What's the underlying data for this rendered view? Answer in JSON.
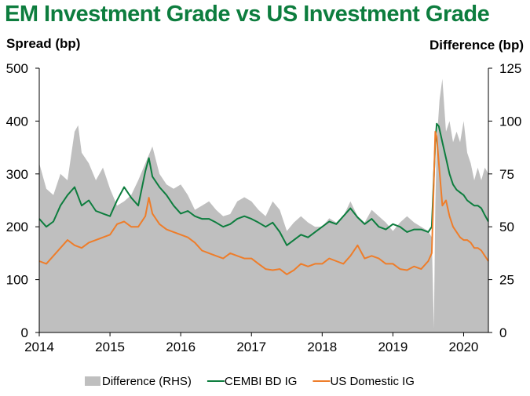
{
  "title": "EM Investment Grade vs US Investment Grade",
  "chart_data": {
    "type": "line",
    "title": "EM Investment Grade vs US Investment Grade",
    "ylabel_left": "Spread (bp)",
    "ylabel_right": "Difference (bp)",
    "xlim": [
      2014.0,
      2020.35
    ],
    "ylim_left": [
      0,
      500
    ],
    "ylim_right": [
      0,
      125
    ],
    "x_ticks": [
      "2014",
      "2015",
      "2016",
      "2017",
      "2018",
      "2019",
      "2020"
    ],
    "y_ticks_left": [
      "0",
      "100",
      "200",
      "300",
      "400",
      "500"
    ],
    "y_ticks_right": [
      "0",
      "25",
      "50",
      "75",
      "100",
      "125"
    ],
    "grid": false,
    "legend_position": "bottom",
    "series": [
      {
        "name": "Difference (RHS)",
        "type": "area",
        "axis": "right",
        "color": "#bfbfbf",
        "x": [
          2014.0,
          2014.1,
          2014.2,
          2014.3,
          2014.4,
          2014.5,
          2014.55,
          2014.6,
          2014.7,
          2014.8,
          2014.9,
          2015.0,
          2015.1,
          2015.2,
          2015.3,
          2015.4,
          2015.5,
          2015.6,
          2015.7,
          2015.8,
          2015.9,
          2016.0,
          2016.1,
          2016.2,
          2016.3,
          2016.4,
          2016.5,
          2016.6,
          2016.7,
          2016.8,
          2016.9,
          2017.0,
          2017.1,
          2017.2,
          2017.3,
          2017.4,
          2017.5,
          2017.6,
          2017.7,
          2017.8,
          2017.9,
          2018.0,
          2018.1,
          2018.2,
          2018.3,
          2018.4,
          2018.5,
          2018.6,
          2018.7,
          2018.8,
          2018.9,
          2019.0,
          2019.1,
          2019.2,
          2019.3,
          2019.4,
          2019.5,
          2019.55,
          2019.58,
          2019.6,
          2019.62,
          2019.66,
          2019.7,
          2019.75,
          2019.8,
          2019.85,
          2019.9,
          2019.95,
          2020.0,
          2020.05,
          2020.1,
          2020.15,
          2020.2,
          2020.25,
          2020.3,
          2020.35
        ],
        "values": [
          80,
          68,
          65,
          75,
          72,
          95,
          98,
          85,
          80,
          72,
          78,
          68,
          60,
          62,
          65,
          72,
          80,
          88,
          75,
          70,
          68,
          70,
          65,
          58,
          60,
          62,
          58,
          55,
          56,
          62,
          64,
          62,
          58,
          55,
          62,
          58,
          48,
          52,
          55,
          52,
          50,
          50,
          54,
          52,
          55,
          62,
          55,
          52,
          58,
          55,
          52,
          48,
          52,
          55,
          52,
          50,
          48,
          45,
          2,
          60,
          90,
          110,
          120,
          95,
          100,
          90,
          95,
          90,
          100,
          85,
          80,
          72,
          78,
          72,
          78,
          75
        ]
      },
      {
        "name": "CEMBI BD IG",
        "type": "line",
        "axis": "left",
        "color": "#0d7d3e",
        "x": [
          2014.0,
          2014.1,
          2014.2,
          2014.3,
          2014.4,
          2014.5,
          2014.6,
          2014.7,
          2014.8,
          2014.9,
          2015.0,
          2015.1,
          2015.2,
          2015.3,
          2015.4,
          2015.5,
          2015.55,
          2015.6,
          2015.7,
          2015.8,
          2015.9,
          2016.0,
          2016.1,
          2016.2,
          2016.3,
          2016.4,
          2016.5,
          2016.6,
          2016.7,
          2016.8,
          2016.9,
          2017.0,
          2017.1,
          2017.2,
          2017.3,
          2017.4,
          2017.5,
          2017.6,
          2017.7,
          2017.8,
          2017.9,
          2018.0,
          2018.1,
          2018.2,
          2018.3,
          2018.4,
          2018.5,
          2018.6,
          2018.7,
          2018.8,
          2018.9,
          2019.0,
          2019.1,
          2019.2,
          2019.3,
          2019.4,
          2019.5,
          2019.55,
          2019.6,
          2019.62,
          2019.65,
          2019.7,
          2019.75,
          2019.8,
          2019.85,
          2019.9,
          2019.95,
          2020.0,
          2020.05,
          2020.1,
          2020.15,
          2020.2,
          2020.25,
          2020.3,
          2020.35
        ],
        "values": [
          215,
          200,
          210,
          240,
          260,
          275,
          240,
          250,
          230,
          225,
          220,
          250,
          275,
          255,
          240,
          305,
          330,
          295,
          275,
          260,
          240,
          225,
          230,
          220,
          215,
          215,
          208,
          200,
          205,
          215,
          220,
          215,
          208,
          200,
          208,
          190,
          165,
          175,
          185,
          180,
          190,
          200,
          210,
          205,
          220,
          235,
          218,
          205,
          215,
          200,
          195,
          205,
          200,
          190,
          195,
          195,
          190,
          200,
          360,
          395,
          390,
          360,
          330,
          300,
          280,
          270,
          265,
          260,
          250,
          245,
          240,
          240,
          235,
          222,
          210
        ]
      },
      {
        "name": "US Domestic IG",
        "type": "line",
        "axis": "left",
        "color": "#ee7d2a",
        "x": [
          2014.0,
          2014.1,
          2014.2,
          2014.3,
          2014.4,
          2014.5,
          2014.6,
          2014.7,
          2014.8,
          2014.9,
          2015.0,
          2015.1,
          2015.2,
          2015.3,
          2015.4,
          2015.5,
          2015.55,
          2015.6,
          2015.7,
          2015.8,
          2015.9,
          2016.0,
          2016.1,
          2016.2,
          2016.3,
          2016.4,
          2016.5,
          2016.6,
          2016.7,
          2016.8,
          2016.9,
          2017.0,
          2017.1,
          2017.2,
          2017.3,
          2017.4,
          2017.5,
          2017.6,
          2017.7,
          2017.8,
          2017.9,
          2018.0,
          2018.1,
          2018.2,
          2018.3,
          2018.4,
          2018.5,
          2018.6,
          2018.7,
          2018.8,
          2018.9,
          2019.0,
          2019.1,
          2019.2,
          2019.3,
          2019.4,
          2019.5,
          2019.55,
          2019.6,
          2019.62,
          2019.65,
          2019.7,
          2019.75,
          2019.8,
          2019.85,
          2019.9,
          2019.95,
          2020.0,
          2020.05,
          2020.1,
          2020.15,
          2020.2,
          2020.25,
          2020.3,
          2020.35
        ],
        "values": [
          135,
          130,
          145,
          160,
          175,
          165,
          160,
          170,
          175,
          180,
          185,
          205,
          210,
          200,
          200,
          220,
          255,
          225,
          205,
          195,
          190,
          185,
          180,
          170,
          155,
          150,
          145,
          140,
          150,
          145,
          140,
          140,
          130,
          120,
          118,
          120,
          110,
          118,
          130,
          125,
          130,
          130,
          140,
          135,
          130,
          145,
          165,
          140,
          145,
          140,
          130,
          130,
          120,
          118,
          125,
          120,
          135,
          150,
          380,
          370,
          320,
          240,
          250,
          220,
          200,
          190,
          180,
          175,
          175,
          170,
          160,
          160,
          155,
          145,
          135
        ]
      }
    ]
  }
}
